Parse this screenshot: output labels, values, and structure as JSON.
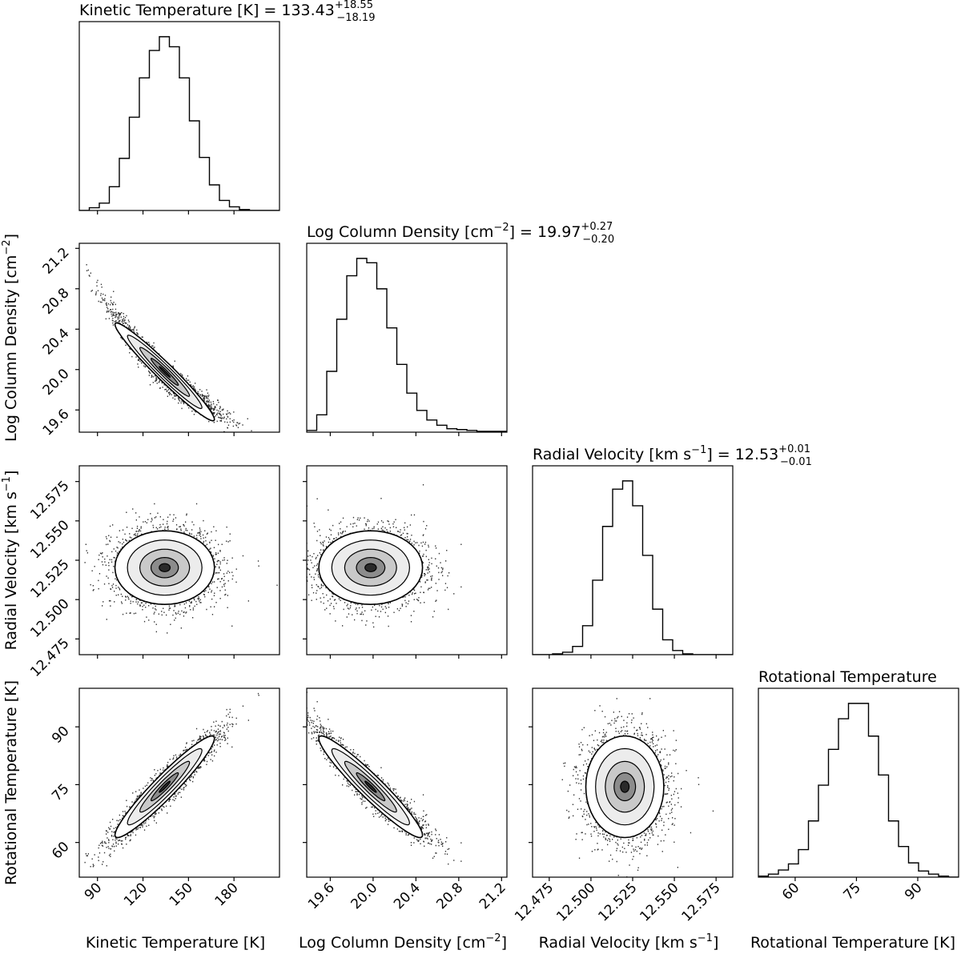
{
  "chart_data": {
    "type": "corner",
    "parameters": [
      {
        "key": "tk",
        "label": "Kinetic Temperature [K]",
        "median": "133.43",
        "plus": "+18.55",
        "minus": "−18.19",
        "range": [
          78,
          210
        ],
        "ticks": [
          90,
          120,
          150,
          180
        ],
        "ticklabels": [
          "90",
          "120",
          "150",
          "180"
        ]
      },
      {
        "key": "logn",
        "label": "Log Column Density [cm",
        "label_sup": "−2",
        "label_tail": "]",
        "median": "19.97",
        "plus": "+0.27",
        "minus": "−0.20",
        "range": [
          19.38,
          21.25
        ],
        "ticks": [
          19.6,
          20.0,
          20.4,
          20.8,
          21.2
        ],
        "ticklabels": [
          "19.6",
          "20.0",
          "20.4",
          "20.8",
          "21.2"
        ]
      },
      {
        "key": "vr",
        "label": "Radial Velocity [km s",
        "label_sup": "−1",
        "label_tail": "]",
        "median": "12.53",
        "plus": "+0.01",
        "minus": "−0.01",
        "range": [
          12.465,
          12.585
        ],
        "ticks": [
          12.475,
          12.5,
          12.525,
          12.55,
          12.575
        ],
        "ticklabels": [
          "12.475",
          "12.500",
          "12.525",
          "12.550",
          "12.575"
        ]
      },
      {
        "key": "trot",
        "label": "Rotational Temperature",
        "axis_label": "Rotational Temperature [K]",
        "median": "",
        "plus": "",
        "minus": "",
        "range": [
          51,
          100
        ],
        "ticks": [
          60,
          75,
          90
        ],
        "ticklabels": [
          "60",
          "75",
          "90"
        ]
      }
    ],
    "histograms": {
      "tk": {
        "bins": [
          78,
          84.6,
          91.2,
          97.8,
          104.4,
          111,
          117.6,
          124.2,
          130.8,
          137.4,
          144,
          150.6,
          157.2,
          163.8,
          170.4,
          177,
          183.6,
          190.2,
          196.8,
          203.4,
          210
        ],
        "counts": [
          0,
          3,
          8,
          26,
          57,
          102,
          145,
          175,
          190,
          179,
          145,
          98,
          58,
          28,
          11,
          4,
          1,
          0,
          0,
          0
        ]
      },
      "logn": {
        "bins": [
          19.38,
          19.4735,
          19.567,
          19.6605,
          19.754,
          19.8475,
          19.941,
          20.0345,
          20.128,
          20.2215,
          20.315,
          20.4085,
          20.502,
          20.5955,
          20.689,
          20.7825,
          20.876,
          20.9695,
          21.063,
          21.1565,
          21.25
        ],
        "counts": [
          2,
          20,
          70,
          130,
          180,
          200,
          195,
          165,
          120,
          78,
          45,
          25,
          14,
          8,
          4,
          3,
          2,
          1,
          1,
          1
        ]
      },
      "vr": {
        "bins": [
          12.465,
          12.471,
          12.477,
          12.483,
          12.489,
          12.495,
          12.501,
          12.507,
          12.513,
          12.519,
          12.525,
          12.531,
          12.537,
          12.543,
          12.549,
          12.555,
          12.561,
          12.567,
          12.573,
          12.579,
          12.585
        ],
        "counts": [
          0,
          0,
          1,
          3,
          10,
          35,
          90,
          155,
          200,
          210,
          180,
          120,
          55,
          18,
          5,
          1,
          0,
          0,
          0,
          0
        ]
      },
      "trot": {
        "bins": [
          51,
          53.45,
          55.9,
          58.35,
          60.8,
          63.25,
          65.7,
          68.15,
          70.6,
          73.05,
          75.5,
          77.95,
          80.4,
          82.85,
          85.3,
          87.75,
          90.2,
          92.65,
          95.1,
          97.55,
          100
        ],
        "counts": [
          1,
          3,
          7,
          13,
          27,
          55,
          90,
          125,
          155,
          170,
          170,
          138,
          100,
          55,
          30,
          14,
          6,
          3,
          1,
          0
        ]
      }
    },
    "pairs": [
      {
        "x": "tk",
        "y": "logn",
        "corr": -0.97,
        "curve": 0.35
      },
      {
        "x": "tk",
        "y": "vr",
        "corr": 0.0,
        "curve": 0
      },
      {
        "x": "logn",
        "y": "vr",
        "corr": 0.0,
        "curve": 0
      },
      {
        "x": "tk",
        "y": "trot",
        "corr": 0.95,
        "curve": 0
      },
      {
        "x": "logn",
        "y": "trot",
        "corr": -0.95,
        "curve": 0.2
      },
      {
        "x": "vr",
        "y": "trot",
        "corr": 0.0,
        "curve": 0
      }
    ],
    "grid": false,
    "legend": "none"
  }
}
